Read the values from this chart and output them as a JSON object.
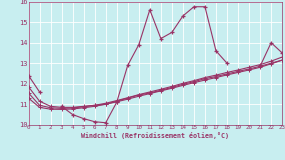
{
  "bg_color": "#c8eef0",
  "grid_color": "#ffffff",
  "line_color": "#993366",
  "x_label": "Windchill (Refroidissement éolien,°C)",
  "y_min": 10,
  "y_max": 16,
  "x_min": 0,
  "x_max": 23,
  "line_main": [
    12.4,
    11.6,
    null,
    10.9,
    10.5,
    10.3,
    10.15,
    10.1,
    11.1,
    12.9,
    13.9,
    15.6,
    14.2,
    14.5,
    15.3,
    15.75,
    15.75,
    13.6,
    13.0,
    null,
    null,
    12.85,
    14.0,
    13.5
  ],
  "line_trend1": [
    11.85,
    11.15,
    10.9,
    10.85,
    10.85,
    10.9,
    10.95,
    11.0,
    11.15,
    11.3,
    11.45,
    11.55,
    11.68,
    11.82,
    11.97,
    12.1,
    12.25,
    12.35,
    12.48,
    12.6,
    12.72,
    12.85,
    13.0,
    13.15
  ],
  "line_trend2": [
    11.55,
    10.95,
    10.83,
    10.8,
    10.82,
    10.88,
    10.95,
    11.05,
    11.18,
    11.32,
    11.47,
    11.6,
    11.73,
    11.87,
    12.02,
    12.15,
    12.3,
    12.42,
    12.55,
    12.67,
    12.8,
    12.93,
    13.1,
    13.3
  ],
  "line_trend3": [
    11.3,
    10.85,
    10.76,
    10.75,
    10.77,
    10.83,
    10.9,
    11.0,
    11.12,
    11.25,
    11.39,
    11.52,
    11.65,
    11.78,
    11.92,
    12.05,
    12.18,
    12.3,
    12.43,
    12.55,
    12.67,
    12.8,
    12.97,
    13.15
  ]
}
